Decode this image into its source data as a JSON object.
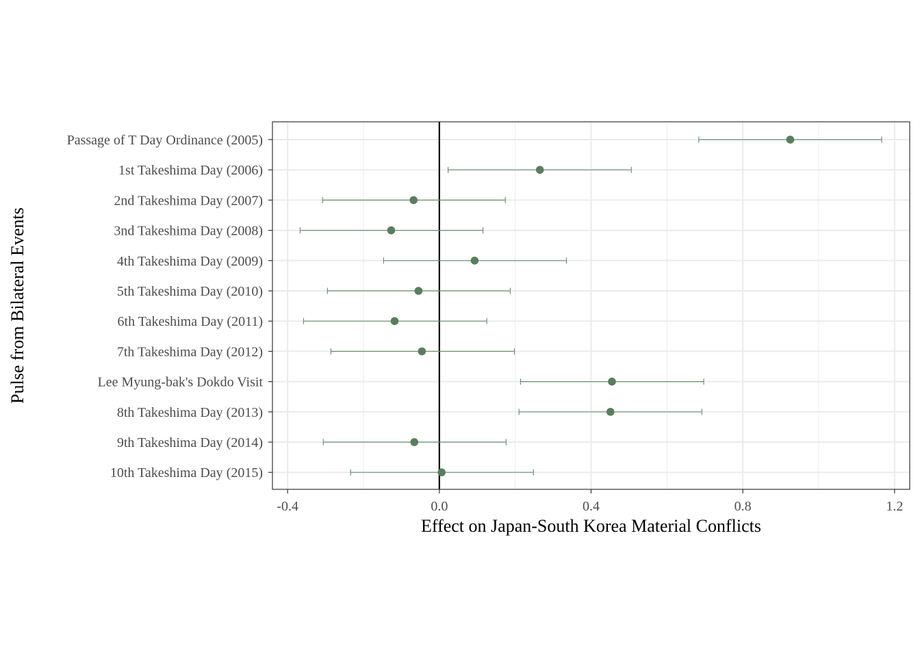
{
  "chart_data": {
    "type": "scatter",
    "subtype": "coefficient-plot-with-error-bars",
    "title": "",
    "xlabel": "Effect on Japan-South Korea Material Conflicts",
    "ylabel": "Pulse from Bilateral Events",
    "xlim": [
      -0.44,
      1.24
    ],
    "xticks": [
      -0.4,
      0.0,
      0.4,
      0.8,
      1.2
    ],
    "xtick_labels": [
      "-0.4",
      "0.0",
      "0.4",
      "0.8",
      "1.2"
    ],
    "reference_line_x": 0,
    "grid": true,
    "legend": "none",
    "point_color": "#5a7d5e",
    "errorbar_color": "#6e9273",
    "categories": [
      "Passage of T Day Ordinance (2005)",
      "1st Takeshima Day (2006)",
      "2nd Takeshima Day (2007)",
      "3nd Takeshima Day (2008)",
      "4th Takeshima Day (2009)",
      "5th Takeshima Day (2010)",
      "6th Takeshima Day (2011)",
      "7th Takeshima Day (2012)",
      "Lee Myung-bak's Dokdo Visit",
      "8th Takeshima Day (2013)",
      "9th Takeshima Day (2014)",
      "10th Takeshima Day (2015)"
    ],
    "estimates": [
      0.925,
      0.265,
      -0.068,
      -0.127,
      0.093,
      -0.055,
      -0.118,
      -0.046,
      0.455,
      0.451,
      -0.066,
      0.006
    ],
    "lower": [
      0.684,
      0.023,
      -0.308,
      -0.367,
      -0.147,
      -0.295,
      -0.358,
      -0.286,
      0.214,
      0.21,
      -0.306,
      -0.234
    ],
    "upper": [
      1.166,
      0.506,
      0.174,
      0.115,
      0.335,
      0.187,
      0.125,
      0.198,
      0.697,
      0.692,
      0.176,
      0.248
    ]
  }
}
